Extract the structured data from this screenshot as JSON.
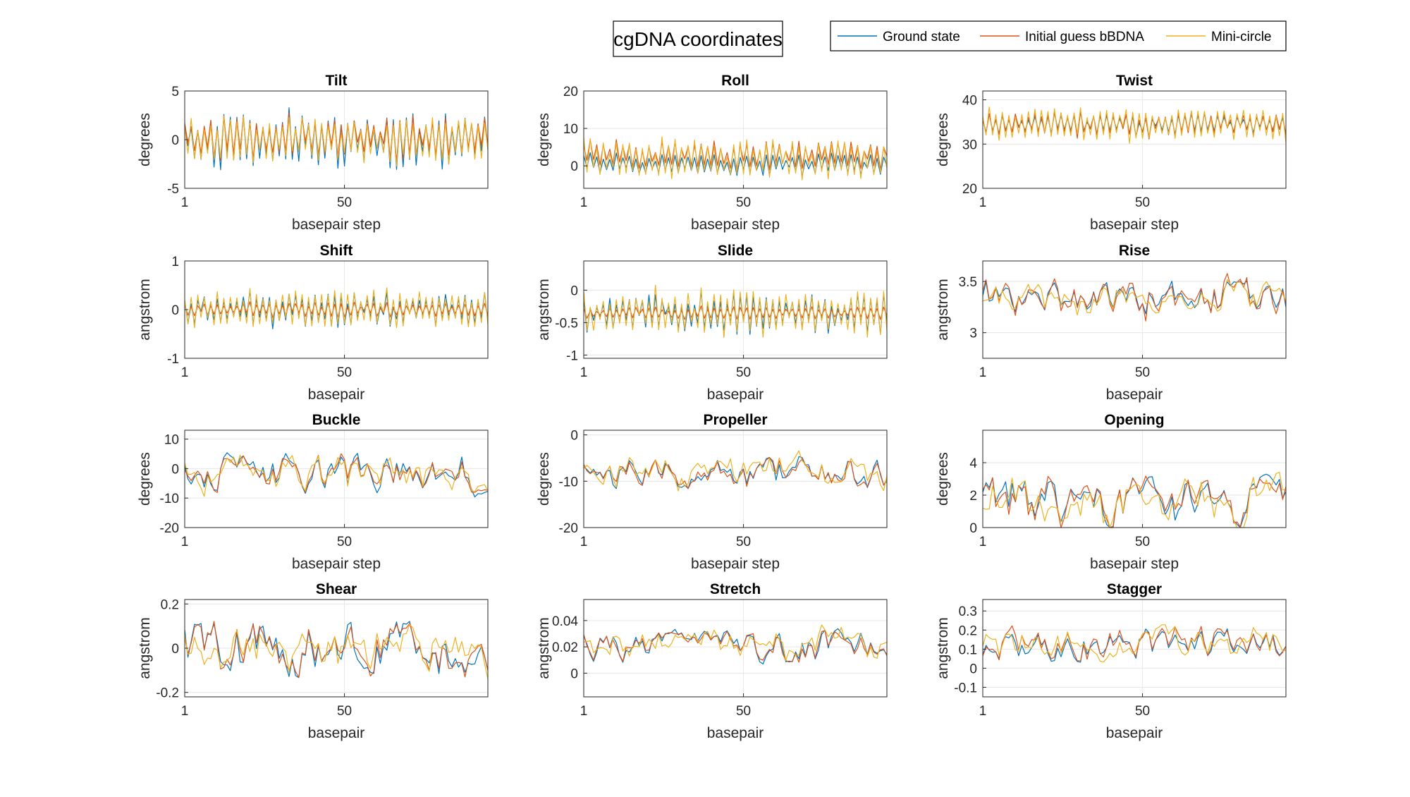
{
  "figure": {
    "title": "cgDNA coordinates",
    "legend": [
      {
        "name": "Ground state",
        "color": "#0072BD"
      },
      {
        "name": "Initial guess bBDNA",
        "color": "#D95319"
      },
      {
        "name": "Mini-circle",
        "color": "#EDB120"
      }
    ]
  },
  "chart_data": [
    {
      "type": "line",
      "title": "Tilt",
      "xlabel": "basepair step",
      "ylabel": "degrees",
      "xlim": [
        1,
        94
      ],
      "ylim": [
        -5,
        5
      ],
      "xticks": [
        1,
        50
      ],
      "yticks": [
        -5,
        0,
        5
      ],
      "grid": true,
      "n": 94,
      "pattern": "alternating",
      "series": [
        {
          "name": "Ground state",
          "base": 0,
          "amp": 2.8
        },
        {
          "name": "Initial guess bBDNA",
          "base": 0.3,
          "amp": 2.2
        },
        {
          "name": "Mini-circle",
          "base": 0,
          "amp": 2.5
        }
      ]
    },
    {
      "type": "line",
      "title": "Roll",
      "xlabel": "basepair step",
      "ylabel": "degrees",
      "xlim": [
        1,
        94
      ],
      "ylim": [
        -6,
        20
      ],
      "xticks": [
        1,
        50
      ],
      "yticks": [
        0,
        10,
        20
      ],
      "grid": true,
      "n": 94,
      "pattern": "alternating",
      "series": [
        {
          "name": "Ground state",
          "base": 0.5,
          "amp": 3
        },
        {
          "name": "Initial guess bBDNA",
          "base": 3,
          "amp": 4
        },
        {
          "name": "Mini-circle",
          "base": 2,
          "amp": 6
        }
      ]
    },
    {
      "type": "line",
      "title": "Twist",
      "xlabel": "basepair step",
      "ylabel": "degrees",
      "xlim": [
        1,
        94
      ],
      "ylim": [
        20,
        42
      ],
      "xticks": [
        1,
        50
      ],
      "yticks": [
        20,
        30,
        40
      ],
      "grid": true,
      "n": 94,
      "pattern": "alternating",
      "series": [
        {
          "name": "Ground state",
          "base": 34.5,
          "amp": 2.5
        },
        {
          "name": "Initial guess bBDNA",
          "base": 34.5,
          "amp": 3
        },
        {
          "name": "Mini-circle",
          "base": 34.5,
          "amp": 4
        }
      ]
    },
    {
      "type": "line",
      "title": "Shift",
      "xlabel": "basepair",
      "ylabel": "angstrom",
      "xlim": [
        1,
        94
      ],
      "ylim": [
        -1,
        1
      ],
      "xticks": [
        1,
        50
      ],
      "yticks": [
        -1,
        0,
        1
      ],
      "grid": true,
      "n": 94,
      "pattern": "alternating",
      "series": [
        {
          "name": "Ground state",
          "base": 0,
          "amp": 0.35
        },
        {
          "name": "Initial guess bBDNA",
          "base": 0,
          "amp": 0.15
        },
        {
          "name": "Mini-circle",
          "base": 0,
          "amp": 0.45
        }
      ]
    },
    {
      "type": "line",
      "title": "Slide",
      "xlabel": "basepair",
      "ylabel": "angstrom",
      "xlim": [
        1,
        94
      ],
      "ylim": [
        -1.05,
        0.45
      ],
      "xticks": [
        1,
        50
      ],
      "yticks": [
        -1,
        -0.5,
        0
      ],
      "grid": true,
      "n": 94,
      "pattern": "alternating",
      "series": [
        {
          "name": "Ground state",
          "base": -0.35,
          "amp": 0.3
        },
        {
          "name": "Initial guess bBDNA",
          "base": -0.35,
          "amp": 0.1
        },
        {
          "name": "Mini-circle",
          "base": -0.35,
          "amp": 0.38
        }
      ]
    },
    {
      "type": "line",
      "title": "Rise",
      "xlabel": "basepair",
      "ylabel": "angstrom",
      "xlim": [
        1,
        94
      ],
      "ylim": [
        2.75,
        3.7
      ],
      "xticks": [
        1,
        50
      ],
      "yticks": [
        3,
        3.5
      ],
      "grid": true,
      "n": 94,
      "pattern": "smooth",
      "series": [
        {
          "name": "Ground state",
          "base": 3.33,
          "amp": 0.15
        },
        {
          "name": "Initial guess bBDNA",
          "base": 3.33,
          "amp": 0.19
        },
        {
          "name": "Mini-circle",
          "base": 3.33,
          "amp": 0.15
        }
      ]
    },
    {
      "type": "line",
      "title": "Buckle",
      "xlabel": "basepair step",
      "ylabel": "degrees",
      "xlim": [
        1,
        94
      ],
      "ylim": [
        -20,
        13
      ],
      "xticks": [
        1,
        50
      ],
      "yticks": [
        -20,
        -10,
        0,
        10
      ],
      "grid": true,
      "n": 94,
      "pattern": "smooth",
      "series": [
        {
          "name": "Ground state",
          "base": -2,
          "amp": 5.5
        },
        {
          "name": "Initial guess bBDNA",
          "base": -2,
          "amp": 5.5
        },
        {
          "name": "Mini-circle",
          "base": -2,
          "amp": 6
        }
      ]
    },
    {
      "type": "line",
      "title": "Propeller",
      "xlabel": "basepair step",
      "ylabel": "degrees",
      "xlim": [
        1,
        94
      ],
      "ylim": [
        -20,
        1
      ],
      "xticks": [
        1,
        50
      ],
      "yticks": [
        -20,
        -10,
        0
      ],
      "grid": true,
      "n": 94,
      "pattern": "smooth",
      "series": [
        {
          "name": "Ground state",
          "base": -8.5,
          "amp": 3
        },
        {
          "name": "Initial guess bBDNA",
          "base": -8.5,
          "amp": 3
        },
        {
          "name": "Mini-circle",
          "base": -8,
          "amp": 3.3
        }
      ]
    },
    {
      "type": "line",
      "title": "Opening",
      "xlabel": "basepair step",
      "ylabel": "degrees",
      "xlim": [
        1,
        94
      ],
      "ylim": [
        0,
        6
      ],
      "xticks": [
        1,
        50
      ],
      "yticks": [
        0,
        2,
        4
      ],
      "grid": true,
      "n": 94,
      "pattern": "smooth",
      "series": [
        {
          "name": "Ground state",
          "base": 1.5,
          "amp": 1.3
        },
        {
          "name": "Initial guess bBDNA",
          "base": 1.5,
          "amp": 1.4
        },
        {
          "name": "Mini-circle",
          "base": 1.5,
          "amp": 1.5
        }
      ]
    },
    {
      "type": "line",
      "title": "Shear",
      "xlabel": "basepair",
      "ylabel": "angstrom",
      "xlim": [
        1,
        94
      ],
      "ylim": [
        -0.22,
        0.22
      ],
      "xticks": [
        1,
        50
      ],
      "yticks": [
        -0.2,
        0,
        0.2
      ],
      "grid": true,
      "n": 94,
      "pattern": "smooth",
      "series": [
        {
          "name": "Ground state",
          "base": 0,
          "amp": 0.1
        },
        {
          "name": "Initial guess bBDNA",
          "base": 0,
          "amp": 0.1
        },
        {
          "name": "Mini-circle",
          "base": 0,
          "amp": 0.11
        }
      ]
    },
    {
      "type": "line",
      "title": "Stretch",
      "xlabel": "basepair",
      "ylabel": "angstrom",
      "xlim": [
        1,
        94
      ],
      "ylim": [
        -0.018,
        0.056
      ],
      "xticks": [
        1,
        50
      ],
      "yticks": [
        0,
        0.02,
        0.04
      ],
      "grid": true,
      "n": 94,
      "pattern": "smooth",
      "series": [
        {
          "name": "Ground state",
          "base": 0.02,
          "amp": 0.01
        },
        {
          "name": "Initial guess bBDNA",
          "base": 0.02,
          "amp": 0.01
        },
        {
          "name": "Mini-circle",
          "base": 0.022,
          "amp": 0.012
        }
      ]
    },
    {
      "type": "line",
      "title": "Stagger",
      "xlabel": "basepair",
      "ylabel": "angstrom",
      "xlim": [
        1,
        94
      ],
      "ylim": [
        -0.15,
        0.36
      ],
      "xticks": [
        1,
        50
      ],
      "yticks": [
        -0.1,
        0,
        0.1,
        0.2,
        0.3
      ],
      "grid": true,
      "n": 94,
      "pattern": "smooth",
      "series": [
        {
          "name": "Ground state",
          "base": 0.12,
          "amp": 0.07
        },
        {
          "name": "Initial guess bBDNA",
          "base": 0.13,
          "amp": 0.08
        },
        {
          "name": "Mini-circle",
          "base": 0.12,
          "amp": 0.08
        }
      ]
    }
  ]
}
